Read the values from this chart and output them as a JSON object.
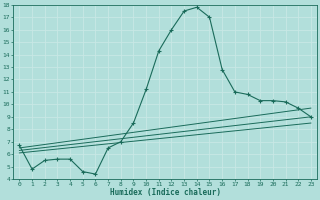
{
  "xlabel": "Humidex (Indice chaleur)",
  "background_color": "#b2dfdb",
  "grid_color": "#c8e8e5",
  "line_color": "#1a6b5a",
  "xlim": [
    -0.5,
    23.5
  ],
  "ylim": [
    4,
    18
  ],
  "xticks": [
    0,
    1,
    2,
    3,
    4,
    5,
    6,
    7,
    8,
    9,
    10,
    11,
    12,
    13,
    14,
    15,
    16,
    17,
    18,
    19,
    20,
    21,
    22,
    23
  ],
  "yticks": [
    4,
    5,
    6,
    7,
    8,
    9,
    10,
    11,
    12,
    13,
    14,
    15,
    16,
    17,
    18
  ],
  "curve1_x": [
    0,
    1,
    2,
    3,
    4,
    5,
    6,
    7,
    8,
    9,
    10,
    11,
    12,
    13,
    14,
    15,
    16,
    17,
    18,
    19,
    20,
    21,
    22,
    23
  ],
  "curve1_y": [
    6.7,
    4.8,
    5.5,
    5.6,
    5.6,
    4.6,
    4.4,
    6.5,
    7.0,
    8.5,
    11.2,
    14.3,
    16.0,
    17.5,
    17.8,
    17.0,
    12.8,
    11.0,
    10.8,
    10.3,
    10.3,
    10.2,
    9.7,
    9.0
  ],
  "line1_x": [
    0,
    23
  ],
  "line1_y": [
    6.5,
    9.7
  ],
  "line2_x": [
    0,
    23
  ],
  "line2_y": [
    6.3,
    9.0
  ],
  "line3_x": [
    0,
    23
  ],
  "line3_y": [
    6.1,
    8.5
  ]
}
